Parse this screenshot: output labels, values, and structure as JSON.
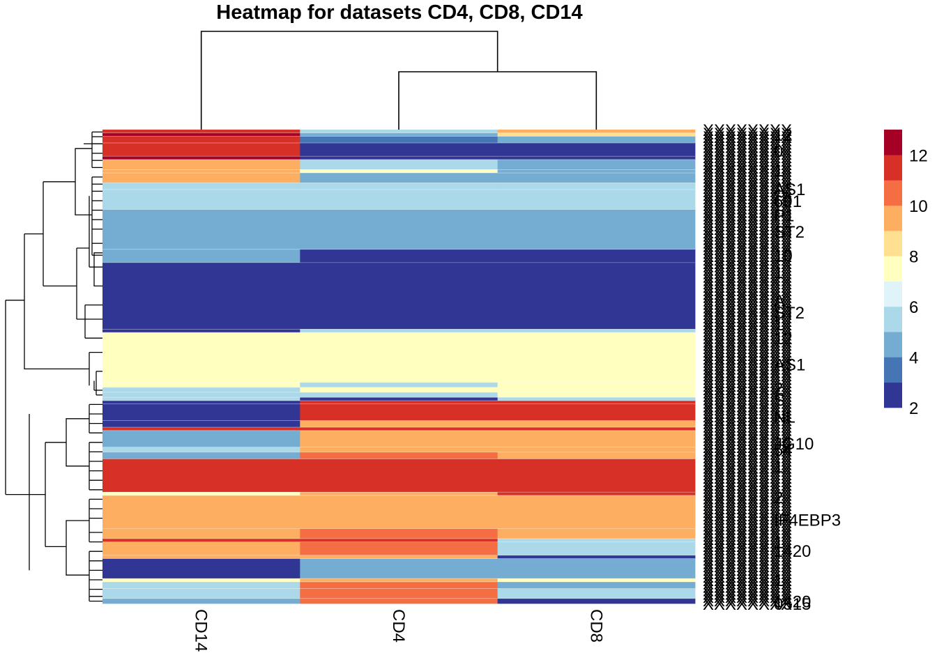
{
  "chart_data": {
    "type": "heatmap",
    "title": "Heatmap for datasets CD4, CD8, CD14",
    "columns": [
      "CD14",
      "CD4",
      "CD8"
    ],
    "color_scale": {
      "breaks": [
        2,
        3,
        4,
        5,
        6,
        7,
        8,
        9,
        10,
        11,
        12,
        13
      ],
      "colors": [
        "#313695",
        "#4575b4",
        "#74add1",
        "#abd9e9",
        "#e0f3f8",
        "#ffffbf",
        "#fee090",
        "#fdae61",
        "#f46d43",
        "#d73027",
        "#a50026"
      ],
      "legend_ticks": [
        2,
        4,
        6,
        8,
        10,
        12
      ]
    },
    "row_blocks": [
      {
        "rows": 2,
        "values": [
          11.5,
          5.0,
          9.0
        ]
      },
      {
        "rows": 2,
        "values": [
          12.0,
          4.5,
          8.5
        ]
      },
      {
        "rows": 4,
        "values": [
          11.5,
          3.5,
          4.5
        ]
      },
      {
        "rows": 8,
        "values": [
          11.5,
          2.0,
          2.0
        ]
      },
      {
        "rows": 2,
        "values": [
          12.5,
          2.0,
          2.0
        ]
      },
      {
        "rows": 6,
        "values": [
          9.5,
          5.0,
          4.0
        ]
      },
      {
        "rows": 2,
        "values": [
          9.5,
          7.5,
          4.5
        ]
      },
      {
        "rows": 6,
        "values": [
          9.5,
          4.5,
          4.5
        ]
      },
      {
        "rows": 4,
        "values": [
          5.5,
          5.5,
          5.5
        ]
      },
      {
        "rows": 12,
        "values": [
          5.5,
          5.5,
          5.5
        ]
      },
      {
        "rows": 24,
        "values": [
          4.5,
          4.5,
          4.5
        ]
      },
      {
        "rows": 8,
        "values": [
          4.5,
          2.0,
          2.0
        ]
      },
      {
        "rows": 40,
        "values": [
          2.0,
          2.0,
          2.0
        ]
      },
      {
        "rows": 2,
        "values": [
          2.0,
          5.0,
          5.0
        ]
      },
      {
        "rows": 30,
        "values": [
          7.5,
          7.5,
          7.5
        ]
      },
      {
        "rows": 3,
        "values": [
          7.5,
          5.5,
          7.5
        ]
      },
      {
        "rows": 3,
        "values": [
          5.5,
          7.5,
          7.5
        ]
      },
      {
        "rows": 3,
        "values": [
          5.5,
          5.5,
          7.5
        ]
      },
      {
        "rows": 2,
        "values": [
          5.5,
          2.0,
          5.5
        ]
      },
      {
        "rows": 2,
        "values": [
          2.0,
          11.5,
          11.5
        ]
      },
      {
        "rows": 10,
        "values": [
          2.0,
          11.5,
          11.5
        ]
      },
      {
        "rows": 4,
        "values": [
          2.0,
          9.5,
          9.5
        ]
      },
      {
        "rows": 2,
        "values": [
          11.5,
          11.5,
          11.5
        ]
      },
      {
        "rows": 10,
        "values": [
          4.5,
          9.5,
          9.5
        ]
      },
      {
        "rows": 3,
        "values": [
          5.5,
          9.5,
          9.5
        ]
      },
      {
        "rows": 4,
        "values": [
          4.5,
          10.5,
          9.5
        ]
      },
      {
        "rows": 20,
        "values": [
          11.5,
          11.5,
          11.5
        ]
      },
      {
        "rows": 2,
        "values": [
          7.5,
          9.5,
          11.5
        ]
      },
      {
        "rows": 20,
        "values": [
          9.5,
          9.5,
          9.5
        ]
      },
      {
        "rows": 6,
        "values": [
          9.5,
          10.5,
          9.5
        ]
      },
      {
        "rows": 2,
        "values": [
          11.5,
          11.5,
          5.0
        ]
      },
      {
        "rows": 8,
        "values": [
          9.5,
          10.5,
          5.0
        ]
      },
      {
        "rows": 2,
        "values": [
          9.5,
          9.5,
          2.0
        ]
      },
      {
        "rows": 12,
        "values": [
          2.0,
          4.5,
          4.5
        ]
      },
      {
        "rows": 2,
        "values": [
          7.5,
          9.5,
          7.5
        ]
      },
      {
        "rows": 4,
        "values": [
          5.5,
          10.5,
          4.5
        ]
      },
      {
        "rows": 6,
        "values": [
          5.5,
          10.5,
          5.5
        ]
      },
      {
        "rows": 3,
        "values": [
          4.5,
          10.5,
          2.0
        ]
      }
    ],
    "row_labels": [
      {
        "text": "...12",
        "v": 0.01
      },
      {
        "text": "...0",
        "v": 0.045
      },
      {
        "text": "...1",
        "v": 0.085
      },
      {
        "text": "...AS1",
        "v": 0.125
      },
      {
        "text": "...691",
        "v": 0.15
      },
      {
        "text": "...P1",
        "v": 0.18
      },
      {
        "text": "...ST2",
        "v": 0.215
      },
      {
        "text": "...10",
        "v": 0.265
      },
      {
        "text": "...1",
        "v": 0.3
      },
      {
        "text": "...A",
        "v": 0.36
      },
      {
        "text": "...ST2",
        "v": 0.385
      },
      {
        "text": "...1",
        "v": 0.41
      },
      {
        "text": "...12",
        "v": 0.44
      },
      {
        "text": "...AS1",
        "v": 0.495
      },
      {
        "text": "...2",
        "v": 0.545
      },
      {
        "text": "...S",
        "v": 0.57
      },
      {
        "text": "...NL",
        "v": 0.605
      },
      {
        "text": "...JG10",
        "v": 0.662
      },
      {
        "text": "...54",
        "v": 0.675
      },
      {
        "text": "...1",
        "v": 0.71
      },
      {
        "text": "...2",
        "v": 0.775
      },
      {
        "text": "...IF4EBP3",
        "v": 0.823
      },
      {
        "text": "...1",
        "v": 0.87
      },
      {
        "text": "...1420",
        "v": 0.888
      },
      {
        "text": "...1",
        "v": 0.95
      },
      {
        "text": "...1420",
        "v": 0.995
      },
      {
        "text": "...0515",
        "v": 1.0
      }
    ]
  }
}
